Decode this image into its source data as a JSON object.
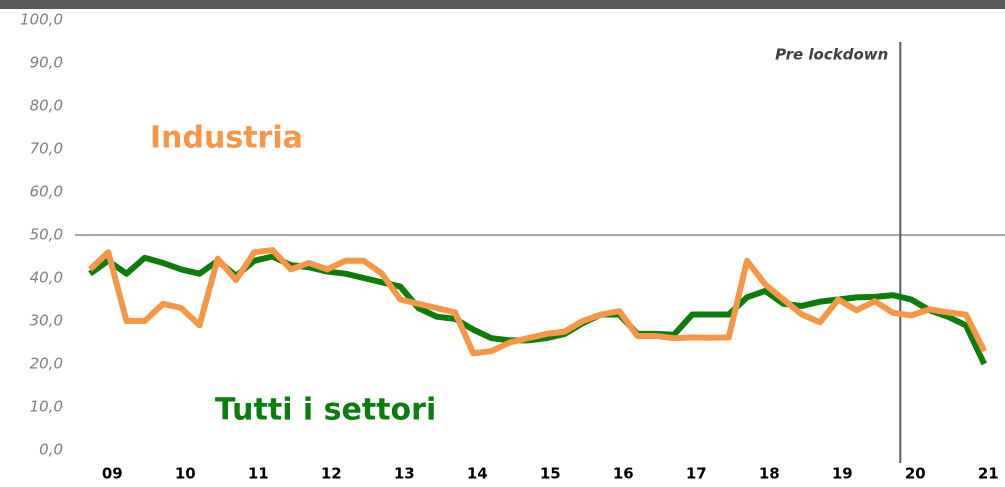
{
  "chart_data": {
    "type": "line",
    "categories": [
      null,
      "09",
      null,
      null,
      null,
      "10",
      null,
      null,
      null,
      "11",
      null,
      null,
      null,
      "12",
      null,
      null,
      null,
      "13",
      null,
      null,
      null,
      "14",
      null,
      null,
      null,
      "15",
      null,
      null,
      null,
      "16",
      null,
      null,
      null,
      "17",
      null,
      null,
      null,
      "18",
      null,
      null,
      null,
      "19",
      null,
      null,
      null,
      "20",
      null,
      null,
      null,
      "21"
    ],
    "series": [
      {
        "name": "Tutti i settori",
        "color": "#0a7d0a",
        "values": [
          41,
          44,
          41,
          44.7,
          43.5,
          42,
          41,
          44,
          40.5,
          44,
          45,
          43,
          42.5,
          41.5,
          41,
          40,
          39,
          38,
          33,
          31,
          30.5,
          28,
          26,
          25.5,
          25.5,
          26,
          27,
          29.5,
          31.5,
          31.5,
          27,
          27,
          26.8,
          31.5,
          31.5,
          31.5,
          35.5,
          37,
          34,
          33.5,
          34.5,
          35,
          35.5,
          35.6,
          36,
          35,
          32.5,
          31,
          29,
          20
        ]
      },
      {
        "name": "Industria",
        "color": "#f79646",
        "values": [
          42,
          46,
          30,
          30,
          34,
          33,
          29,
          44.5,
          39.5,
          46,
          46.5,
          42,
          43.5,
          42,
          44,
          44,
          41,
          35,
          34,
          33,
          32,
          22.5,
          23,
          25,
          26,
          27,
          27.5,
          30,
          31.5,
          32.3,
          26.5,
          26.5,
          26,
          26.2,
          26.1,
          26.2,
          44,
          38.5,
          35,
          31.5,
          29.7,
          35,
          32.5,
          34.6,
          31.9,
          31.3,
          32.7,
          32,
          31.5,
          23
        ]
      }
    ],
    "ylim": [
      0,
      100
    ],
    "yticks": [
      {
        "value": 0,
        "label": "0,0"
      },
      {
        "value": 10,
        "label": "10,0"
      },
      {
        "value": 20,
        "label": "20,0"
      },
      {
        "value": 30,
        "label": "30,0"
      },
      {
        "value": 40,
        "label": "40,0"
      },
      {
        "value": 50,
        "label": "50,0"
      },
      {
        "value": 60,
        "label": "60,0"
      },
      {
        "value": 70,
        "label": "70,0"
      },
      {
        "value": 80,
        "label": "80,0"
      },
      {
        "value": 90,
        "label": "90,0"
      },
      {
        "value": 100,
        "label": "100,0"
      }
    ],
    "reference_line": 50,
    "annotation": {
      "text": "Pre lockdown",
      "x": 44.4
    }
  }
}
